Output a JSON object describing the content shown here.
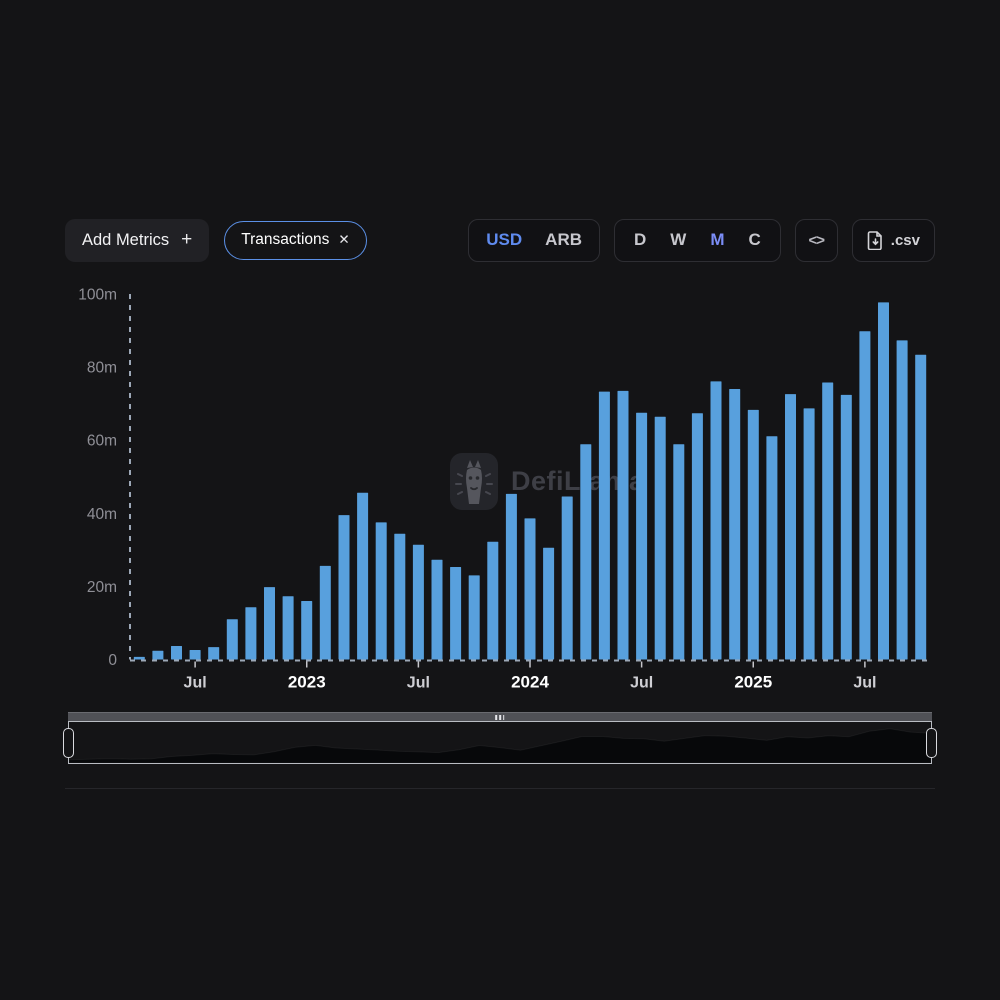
{
  "toolbar": {
    "add_metrics": {
      "label": "Add Metrics",
      "plus": "+"
    },
    "metric_pill": {
      "label": "Transactions",
      "close": "✕"
    },
    "currency_toggle": {
      "options": [
        "USD",
        "ARB"
      ],
      "selected": "USD"
    },
    "interval_toggle": {
      "options": [
        "D",
        "W",
        "M",
        "C"
      ],
      "selected": "M"
    },
    "embed_glyph": "<>",
    "csv_label": ".csv"
  },
  "watermark": {
    "text": "DefiLlama"
  },
  "colors": {
    "background": "#141416",
    "bar": "#58a0dd",
    "accent_blue": "#5f8bef",
    "interval_selected": "#7b8df7",
    "pill_border": "#5b90e6",
    "axis_dash": "#b6c2d4",
    "axis_label": "#8f8f96",
    "year_label": "#ffffff",
    "month_label": "#cfcfd4"
  },
  "chart_data": {
    "type": "bar",
    "title": "",
    "xlabel": "",
    "ylabel": "",
    "unit": "m",
    "ylim": [
      0,
      100
    ],
    "grid": false,
    "legend_position": "none",
    "categories": [
      "2022-04",
      "2022-05",
      "2022-06",
      "2022-07",
      "2022-08",
      "2022-09",
      "2022-10",
      "2022-11",
      "2022-12",
      "2023-01",
      "2023-02",
      "2023-03",
      "2023-04",
      "2023-05",
      "2023-06",
      "2023-07",
      "2023-08",
      "2023-09",
      "2023-10",
      "2023-11",
      "2023-12",
      "2024-01",
      "2024-02",
      "2024-03",
      "2024-04",
      "2024-05",
      "2024-06",
      "2024-07",
      "2024-08",
      "2024-09",
      "2024-10",
      "2024-11",
      "2024-12",
      "2025-01",
      "2025-02",
      "2025-03",
      "2025-04",
      "2025-05",
      "2025-06",
      "2025-07",
      "2025-08",
      "2025-09",
      "2025-10"
    ],
    "values": [
      0.7,
      2.4,
      3.7,
      2.6,
      3.4,
      11.0,
      14.3,
      19.8,
      17.3,
      16.0,
      25.6,
      39.5,
      45.6,
      37.5,
      34.4,
      31.4,
      27.3,
      25.3,
      23.0,
      32.2,
      45.3,
      38.6,
      30.6,
      44.6,
      58.9,
      73.3,
      73.5,
      67.5,
      66.4,
      58.9,
      67.4,
      76.1,
      74.0,
      68.3,
      61.1,
      72.6,
      68.7,
      75.8,
      72.4,
      89.8,
      97.7,
      87.3,
      83.4
    ],
    "yticks": [
      {
        "value": 0,
        "label": "0"
      },
      {
        "value": 20,
        "label": "20m"
      },
      {
        "value": 40,
        "label": "40m"
      },
      {
        "value": 60,
        "label": "60m"
      },
      {
        "value": 80,
        "label": "80m"
      },
      {
        "value": 100,
        "label": "100m"
      }
    ],
    "xticks": [
      {
        "index": 3,
        "label": "Jul",
        "bold": false
      },
      {
        "index": 9,
        "label": "2023",
        "bold": true
      },
      {
        "index": 15,
        "label": "Jul",
        "bold": false
      },
      {
        "index": 21,
        "label": "2024",
        "bold": true
      },
      {
        "index": 27,
        "label": "Jul",
        "bold": false
      },
      {
        "index": 33,
        "label": "2025",
        "bold": true
      },
      {
        "index": 39,
        "label": "Jul",
        "bold": false
      }
    ]
  }
}
